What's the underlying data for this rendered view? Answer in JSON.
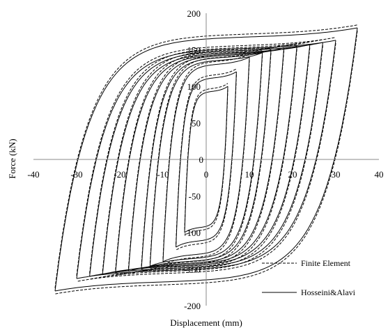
{
  "chart_data": {
    "type": "line",
    "title": "",
    "xlabel": "Displacement (mm)",
    "ylabel": "Force (kN)",
    "xlim": [
      -40,
      40
    ],
    "ylim": [
      -200,
      200
    ],
    "xticks": [
      -40,
      -30,
      -20,
      -10,
      0,
      10,
      20,
      30,
      40
    ],
    "yticks": [
      -200,
      -150,
      -100,
      -50,
      0,
      50,
      100,
      150,
      200
    ],
    "grid": false,
    "legend_position": "bottom-right",
    "colors": {
      "lines": "#000000",
      "axes": "#888888"
    },
    "loops": [
      {
        "amplitude": 5,
        "peak_force": 100
      },
      {
        "amplitude": 7,
        "peak_force": 120
      },
      {
        "amplitude": 10,
        "peak_force": 140
      },
      {
        "amplitude": 13,
        "peak_force": 146
      },
      {
        "amplitude": 15,
        "peak_force": 150
      },
      {
        "amplitude": 18,
        "peak_force": 153
      },
      {
        "amplitude": 21,
        "peak_force": 155
      },
      {
        "amplitude": 24,
        "peak_force": 157
      },
      {
        "amplitude": 27,
        "peak_force": 160
      },
      {
        "amplitude": 30,
        "peak_force": 163
      },
      {
        "amplitude": 35,
        "peak_force": 180
      }
    ],
    "series": [
      {
        "name": "Finite Element",
        "line_style": "dashed"
      },
      {
        "name": "Hosseini&Alavi",
        "line_style": "solid"
      }
    ]
  }
}
